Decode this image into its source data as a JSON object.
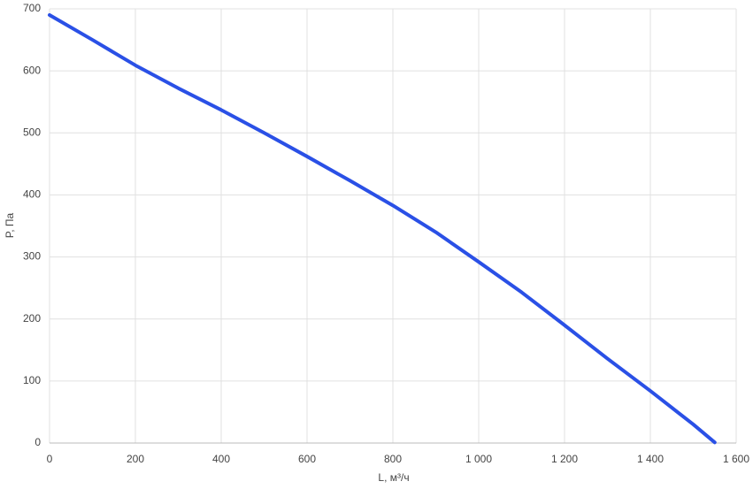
{
  "chart_data": {
    "type": "line",
    "x_label": "L, м³/ч",
    "y_label": "P, Па",
    "x": [
      0,
      100,
      200,
      300,
      400,
      500,
      600,
      700,
      800,
      900,
      1000,
      1100,
      1200,
      1300,
      1400,
      1500,
      1550
    ],
    "series": [
      {
        "name": "P",
        "color": "#2a50e6",
        "values": [
          690,
          650,
          609,
          572,
          537,
          500,
          462,
          423,
          383,
          340,
          292,
          243,
          190,
          136,
          84,
          30,
          1
        ]
      }
    ],
    "xlim": [
      0,
      1600
    ],
    "ylim": [
      0,
      700
    ],
    "xticks": [
      0,
      200,
      400,
      600,
      800,
      {
        "value": 1000,
        "label": "1 000"
      },
      {
        "value": 1200,
        "label": "1 200"
      },
      {
        "value": 1400,
        "label": "1 400"
      },
      {
        "value": 1600,
        "label": "1 600"
      }
    ],
    "yticks": [
      0,
      100,
      200,
      300,
      400,
      500,
      600,
      700
    ],
    "grid": true
  }
}
